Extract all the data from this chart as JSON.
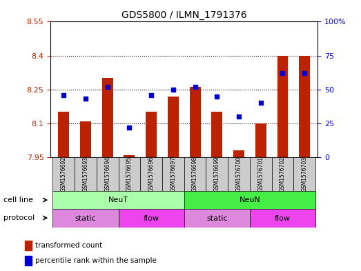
{
  "title": "GDS5800 / ILMN_1791376",
  "samples": [
    "GSM1576692",
    "GSM1576693",
    "GSM1576694",
    "GSM1576695",
    "GSM1576696",
    "GSM1576697",
    "GSM1576698",
    "GSM1576699",
    "GSM1576700",
    "GSM1576701",
    "GSM1576702",
    "GSM1576703"
  ],
  "transformed_counts": [
    8.15,
    8.11,
    8.3,
    7.96,
    8.15,
    8.22,
    8.26,
    8.15,
    7.98,
    8.1,
    8.4,
    8.4
  ],
  "percentile_ranks": [
    46,
    43,
    52,
    22,
    46,
    50,
    52,
    45,
    30,
    40,
    62,
    62
  ],
  "ylim_left": [
    7.95,
    8.55
  ],
  "ylim_right": [
    0,
    100
  ],
  "yticks_left": [
    7.95,
    8.1,
    8.25,
    8.4,
    8.55
  ],
  "yticks_right": [
    0,
    25,
    50,
    75,
    100
  ],
  "ytick_labels_left": [
    "7.95",
    "8.1",
    "8.25",
    "8.4",
    "8.55"
  ],
  "ytick_labels_right": [
    "0",
    "25",
    "50",
    "75",
    "100%"
  ],
  "bar_color": "#bb2200",
  "dot_color": "#0000cc",
  "bar_bottom": 7.95,
  "cell_line_groups": [
    {
      "label": "NeuT",
      "start": 0,
      "end": 5,
      "color": "#aaffaa"
    },
    {
      "label": "NeuN",
      "start": 6,
      "end": 11,
      "color": "#44ee44"
    }
  ],
  "protocol_groups": [
    {
      "label": "static",
      "start": 0,
      "end": 2,
      "color": "#dd88dd"
    },
    {
      "label": "flow",
      "start": 3,
      "end": 5,
      "color": "#ee44ee"
    },
    {
      "label": "static",
      "start": 6,
      "end": 8,
      "color": "#dd88dd"
    },
    {
      "label": "flow",
      "start": 9,
      "end": 11,
      "color": "#ee44ee"
    }
  ],
  "legend_items": [
    {
      "label": "transformed count",
      "color": "#bb2200"
    },
    {
      "label": "percentile rank within the sample",
      "color": "#0000cc"
    }
  ],
  "tick_color_left": "#bb2200",
  "tick_color_right": "#0000cc"
}
